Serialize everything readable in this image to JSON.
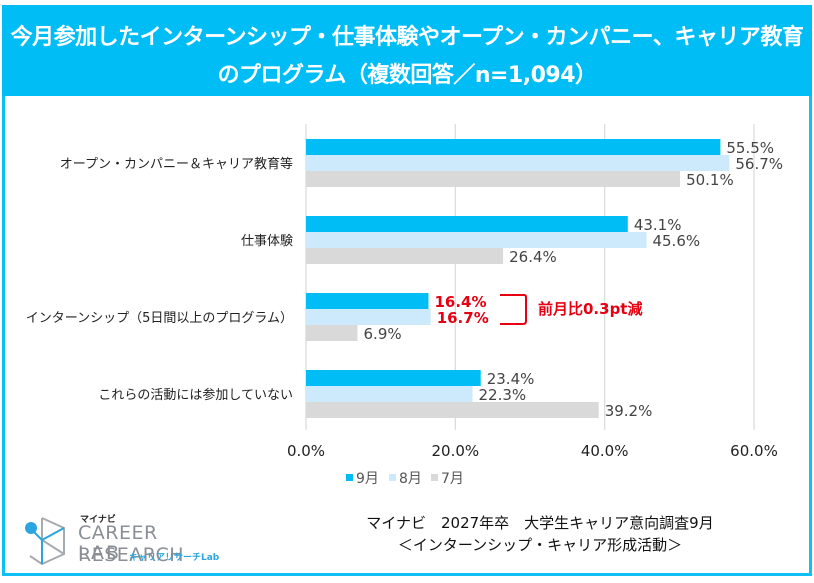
{
  "header": {
    "title_line1": "今月参加したインターンシップ・仕事体験やオープン・カンパニー、キャリア教育",
    "title_line2": "のプログラム（複数回答／n=1,094）"
  },
  "colors": {
    "frame": "#10c0f4",
    "header_bg": "#00bef5",
    "sep": "#00bef5",
    "aug": "#cdeafc",
    "jul": "#d9d9d9",
    "highlight": "#e60012"
  },
  "chart_data": {
    "type": "bar",
    "orientation": "horizontal",
    "title": "今月参加したインターンシップ・仕事体験やオープン・カンパニー、キャリア教育のプログラム（複数回答／n=1,094）",
    "categories": [
      "オープン・カンパニー＆キャリア教育等",
      "仕事体験",
      "インターンシップ（5日間以上のプログラム）",
      "これらの活動には参加していない"
    ],
    "series": [
      {
        "name": "9月",
        "color": "#00bef5",
        "values": [
          55.5,
          43.1,
          16.4,
          23.4
        ],
        "labels": [
          "55.5%",
          "43.1%",
          "16.4%",
          "23.4%"
        ]
      },
      {
        "name": "8月",
        "color": "#cdeafc",
        "values": [
          56.7,
          45.6,
          16.7,
          22.3
        ],
        "labels": [
          "56.7%",
          "45.6%",
          "16.7%",
          "22.3%"
        ]
      },
      {
        "name": "7月",
        "color": "#d9d9d9",
        "values": [
          50.1,
          26.4,
          6.9,
          39.2
        ],
        "labels": [
          "50.1%",
          "26.4%",
          "6.9%",
          "39.2%"
        ]
      }
    ],
    "xlim": [
      0,
      60
    ],
    "xticks": [
      0,
      20,
      40,
      60
    ],
    "xtick_labels": [
      "0.0%",
      "20.0%",
      "40.0%",
      "60.0%"
    ],
    "xlabel": "",
    "ylabel": "",
    "grid": true,
    "legend": {
      "placement": "bottom",
      "entries": [
        "9月",
        "8月",
        "7月"
      ]
    },
    "highlight": {
      "category_index": 2,
      "series_indices": [
        0,
        1
      ]
    },
    "annotation": {
      "category_index": 2,
      "text": "前月比0.3pt減"
    }
  },
  "footer": {
    "source_line1": "マイナビ　2027年卒　大学生キャリア意向調査9月",
    "source_line2": "＜インターンシップ・キャリア形成活動＞",
    "logo_small": "マイナビ",
    "logo_main": "CAREER RESEARCH",
    "logo_lab": "LAB",
    "logo_sub": "キャリアリサーチLab"
  }
}
